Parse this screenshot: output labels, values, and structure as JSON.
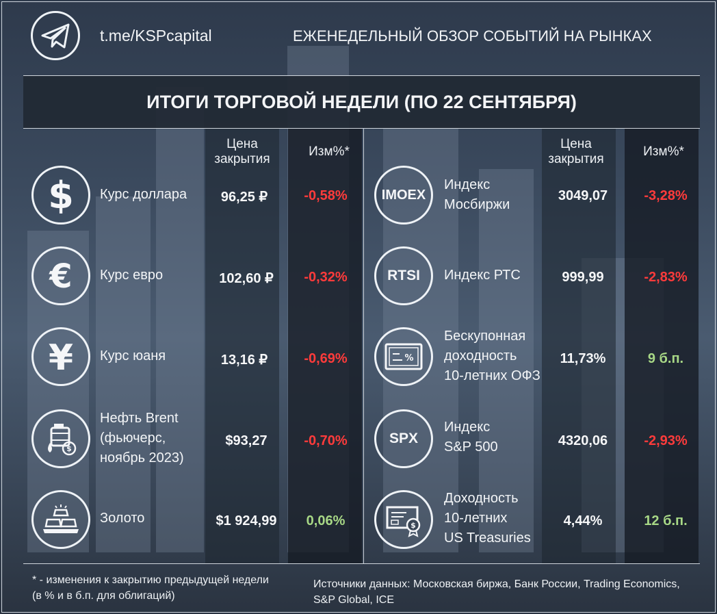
{
  "header": {
    "channel_link": "t.me/KSPcapital",
    "title": "ЕЖЕНЕДЕЛЬНЫЙ ОБЗОР СОБЫТИЙ НА РЫНКАХ"
  },
  "banner": {
    "title": "ИТОГИ ТОРГОВОЙ НЕДЕЛИ (ПО 22 СЕНТЯБРЯ)"
  },
  "columns": {
    "price_line1": "Цена",
    "price_line2": "закрытия",
    "change": "Изм%*"
  },
  "left_rows": [
    {
      "icon": "dollar-icon",
      "label_lines": [
        "Курс доллара"
      ],
      "price": "96,25 ₽",
      "change": "-0,58%",
      "dir": "neg"
    },
    {
      "icon": "euro-icon",
      "label_lines": [
        "Курс евро"
      ],
      "price": "102,60 ₽",
      "change": "-0,32%",
      "dir": "neg"
    },
    {
      "icon": "yuan-icon",
      "label_lines": [
        "Курс юаня"
      ],
      "price": "13,16 ₽",
      "change": "-0,69%",
      "dir": "neg"
    },
    {
      "icon": "oil-barrel-icon",
      "label_lines": [
        "Нефть Brent",
        "(фьючерс,",
        "ноябрь 2023)"
      ],
      "price": "$93,27",
      "change": "-0,70%",
      "dir": "neg"
    },
    {
      "icon": "gold-bars-icon",
      "label_lines": [
        "Золото"
      ],
      "price": "$1 924,99",
      "change": "0,06%",
      "dir": "pos"
    }
  ],
  "right_rows": [
    {
      "icon_text": "IMOEX",
      "label_lines": [
        "Индекс",
        "Мосбиржи"
      ],
      "price": "3049,07",
      "change": "-3,28%",
      "dir": "neg"
    },
    {
      "icon_text": "RTSI",
      "label_lines": [
        "Индекс РТС"
      ],
      "price": "999,99",
      "change": "-2,83%",
      "dir": "neg"
    },
    {
      "icon": "bond-certificate-icon",
      "label_lines": [
        "Бескупонная",
        "доходность",
        "10-летних ОФЗ"
      ],
      "price": "11,73%",
      "change": "9 б.п.",
      "dir": "pos"
    },
    {
      "icon_text": "SPX",
      "label_lines": [
        "Индекс",
        "S&P 500"
      ],
      "price": "4320,06",
      "change": "-2,93%",
      "dir": "neg"
    },
    {
      "icon": "treasury-certificate-icon",
      "label_lines": [
        "Доходность",
        "10-летних",
        "US Treasuries"
      ],
      "price": "4,44%",
      "change": "12 б.п.",
      "dir": "pos"
    }
  ],
  "footer": {
    "note_line1": "* - изменения к закрытию предыдущей недели",
    "note_line2": "(в % и в б.п. для облигаций)",
    "sources_line1": "Источники данных: Московская биржа, Банк России, Trading Economics,",
    "sources_line2": "S&P Global, ICE"
  },
  "colors": {
    "negative": "#ff3b3b",
    "positive": "#a8d886",
    "banner_bg": "#222a35"
  }
}
